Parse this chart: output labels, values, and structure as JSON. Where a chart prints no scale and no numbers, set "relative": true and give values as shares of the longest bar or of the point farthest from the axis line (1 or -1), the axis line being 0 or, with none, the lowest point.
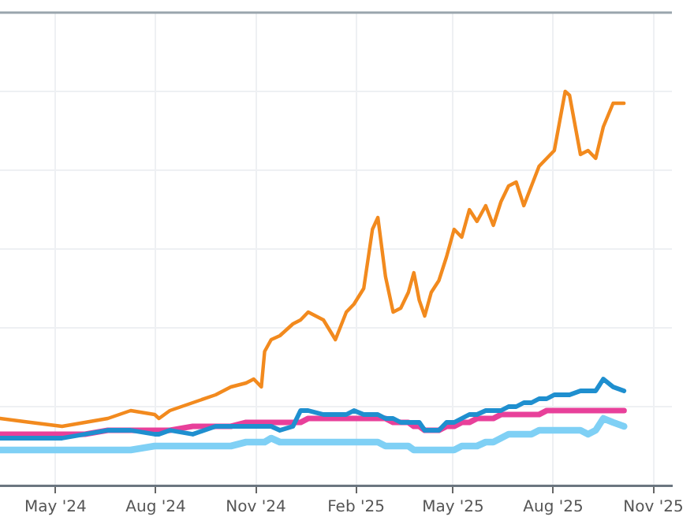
{
  "chart_data": {
    "type": "line",
    "relative": true,
    "grid": true,
    "legend": false,
    "marker": "none",
    "line_style": "solid",
    "x": [
      "2024-03-11",
      "2024-04-08",
      "2024-05-07",
      "2024-05-28",
      "2024-06-18",
      "2024-07-09",
      "2024-07-31",
      "2024-08-04",
      "2024-08-14",
      "2024-09-04",
      "2024-09-25",
      "2024-10-09",
      "2024-10-23",
      "2024-10-30",
      "2024-11-06",
      "2024-11-09",
      "2024-11-15",
      "2024-11-23",
      "2024-12-05",
      "2024-12-12",
      "2024-12-19",
      "2025-01-02",
      "2025-01-13",
      "2025-01-23",
      "2025-01-30",
      "2025-02-08",
      "2025-02-16",
      "2025-02-21",
      "2025-02-28",
      "2025-03-07",
      "2025-03-14",
      "2025-03-21",
      "2025-03-26",
      "2025-03-31",
      "2025-04-05",
      "2025-04-11",
      "2025-04-18",
      "2025-04-25",
      "2025-05-02",
      "2025-05-09",
      "2025-05-16",
      "2025-05-23",
      "2025-05-31",
      "2025-06-07",
      "2025-06-14",
      "2025-06-21",
      "2025-06-28",
      "2025-07-05",
      "2025-07-12",
      "2025-07-19",
      "2025-07-26",
      "2025-08-02",
      "2025-08-12",
      "2025-08-16",
      "2025-08-26",
      "2025-09-02",
      "2025-09-09",
      "2025-09-16",
      "2025-09-25",
      "2025-10-05"
    ],
    "xlim": [
      "2024-03-11",
      "2025-11-18"
    ],
    "xticks": [
      {
        "value": "2024-05-01",
        "label": "May '24"
      },
      {
        "value": "2024-08-01",
        "label": "Aug '24"
      },
      {
        "value": "2024-11-01",
        "label": "Nov '24"
      },
      {
        "value": "2025-02-01",
        "label": "Feb '25"
      },
      {
        "value": "2025-05-01",
        "label": "May '25"
      },
      {
        "value": "2025-08-01",
        "label": "Aug '25"
      },
      {
        "value": "2025-11-01",
        "label": "Nov '25"
      }
    ],
    "series": [
      {
        "color": "#7fd0f5",
        "values": [
          0.09,
          0.09,
          0.09,
          0.09,
          0.09,
          0.09,
          0.1,
          0.1,
          0.1,
          0.1,
          0.1,
          0.1,
          0.11,
          0.11,
          0.11,
          0.11,
          0.12,
          0.11,
          0.11,
          0.11,
          0.11,
          0.11,
          0.11,
          0.11,
          0.11,
          0.11,
          0.11,
          0.11,
          0.1,
          0.1,
          0.1,
          0.1,
          0.09,
          0.09,
          0.09,
          0.09,
          0.09,
          0.09,
          0.09,
          0.1,
          0.1,
          0.1,
          0.11,
          0.11,
          0.12,
          0.13,
          0.13,
          0.13,
          0.13,
          0.14,
          0.14,
          0.14,
          0.14,
          0.14,
          0.14,
          0.13,
          0.14,
          0.17,
          0.16,
          0.15
        ]
      },
      {
        "color": "#e8409a",
        "values": [
          0.13,
          0.13,
          0.13,
          0.13,
          0.14,
          0.14,
          0.14,
          0.14,
          0.14,
          0.15,
          0.15,
          0.15,
          0.16,
          0.16,
          0.16,
          0.16,
          0.16,
          0.16,
          0.16,
          0.16,
          0.17,
          0.17,
          0.17,
          0.17,
          0.17,
          0.17,
          0.17,
          0.17,
          0.17,
          0.16,
          0.16,
          0.16,
          0.15,
          0.15,
          0.14,
          0.14,
          0.14,
          0.15,
          0.15,
          0.16,
          0.16,
          0.17,
          0.17,
          0.17,
          0.18,
          0.18,
          0.18,
          0.18,
          0.18,
          0.18,
          0.19,
          0.19,
          0.19,
          0.19,
          0.19,
          0.19,
          0.19,
          0.19,
          0.19,
          0.19
        ]
      },
      {
        "color": "#1f8fcf",
        "values": [
          0.12,
          0.12,
          0.12,
          0.13,
          0.14,
          0.14,
          0.13,
          0.13,
          0.14,
          0.13,
          0.15,
          0.15,
          0.15,
          0.15,
          0.15,
          0.15,
          0.15,
          0.14,
          0.15,
          0.19,
          0.19,
          0.18,
          0.18,
          0.18,
          0.19,
          0.18,
          0.18,
          0.18,
          0.17,
          0.17,
          0.16,
          0.16,
          0.16,
          0.16,
          0.14,
          0.14,
          0.14,
          0.16,
          0.16,
          0.17,
          0.18,
          0.18,
          0.19,
          0.19,
          0.19,
          0.2,
          0.2,
          0.21,
          0.21,
          0.22,
          0.22,
          0.23,
          0.23,
          0.23,
          0.24,
          0.24,
          0.24,
          0.27,
          0.25,
          0.24
        ]
      },
      {
        "color": "#f28a1e",
        "values": [
          0.17,
          0.16,
          0.15,
          0.16,
          0.17,
          0.19,
          0.18,
          0.17,
          0.19,
          0.21,
          0.23,
          0.25,
          0.26,
          0.27,
          0.25,
          0.34,
          0.37,
          0.38,
          0.41,
          0.42,
          0.44,
          0.42,
          0.37,
          0.44,
          0.46,
          0.5,
          0.65,
          0.68,
          0.53,
          0.44,
          0.45,
          0.49,
          0.54,
          0.47,
          0.43,
          0.49,
          0.52,
          0.58,
          0.65,
          0.63,
          0.7,
          0.67,
          0.71,
          0.66,
          0.72,
          0.76,
          0.77,
          0.71,
          0.76,
          0.81,
          0.83,
          0.85,
          1,
          0.99,
          0.84,
          0.85,
          0.83,
          0.91,
          0.97,
          0.97
        ]
      }
    ]
  }
}
